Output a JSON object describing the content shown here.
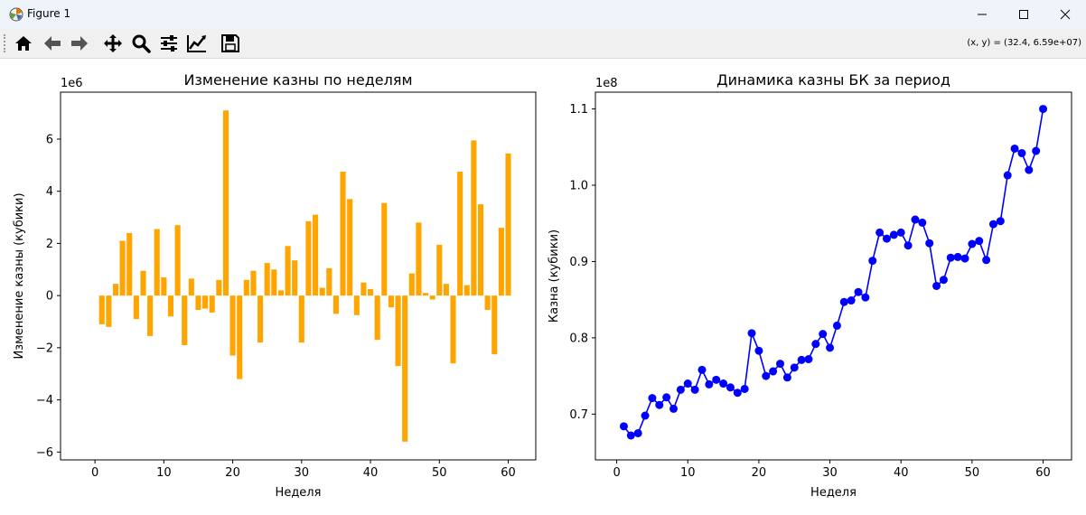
{
  "window": {
    "title": "Figure 1"
  },
  "toolbar": {
    "buttons": [
      {
        "name": "home-button",
        "icon": "home-icon"
      },
      {
        "name": "back-button",
        "icon": "arrow-left-icon"
      },
      {
        "name": "forward-button",
        "icon": "arrow-right-icon"
      },
      {
        "name": "pan-button",
        "icon": "move-icon"
      },
      {
        "name": "zoom-button",
        "icon": "magnifier-icon"
      },
      {
        "name": "configure-subplots-button",
        "icon": "sliders-icon"
      },
      {
        "name": "edit-axis-button",
        "icon": "line-chart-icon"
      },
      {
        "name": "save-button",
        "icon": "floppy-disk-icon"
      }
    ],
    "coords": "(x, y) = (32.4, 6.59e+07)"
  },
  "chart_data": [
    {
      "type": "bar",
      "title": "Изменение казны по неделям",
      "xlabel": "Неделя",
      "ylabel": "Изменение казны (кубики)",
      "offset_label": "1e6",
      "color": "#ffa500",
      "xlim": [
        -5,
        64
      ],
      "ylim": [
        -6.3,
        7.8
      ],
      "xticks": [
        0,
        10,
        20,
        30,
        40,
        50,
        60
      ],
      "xtick_labels": [
        "0",
        "10",
        "20",
        "30",
        "40",
        "50",
        "60"
      ],
      "yticks": [
        -6,
        -4,
        -2,
        0,
        2,
        4,
        6
      ],
      "ytick_labels": [
        "−6",
        "−4",
        "−2",
        "0",
        "2",
        "4",
        "6"
      ],
      "x": [
        1,
        2,
        3,
        4,
        5,
        6,
        7,
        8,
        9,
        10,
        11,
        12,
        13,
        14,
        15,
        16,
        17,
        18,
        19,
        20,
        21,
        22,
        23,
        24,
        25,
        26,
        27,
        28,
        29,
        30,
        31,
        32,
        33,
        34,
        35,
        36,
        37,
        38,
        39,
        40,
        41,
        42,
        43,
        44,
        45,
        46,
        47,
        48,
        49,
        50,
        51,
        52,
        53,
        54,
        55,
        56,
        57,
        58,
        59,
        60
      ],
      "values": [
        -1.1,
        -1.2,
        0.45,
        2.1,
        2.4,
        -0.9,
        0.95,
        -1.55,
        2.55,
        0.7,
        -0.8,
        2.7,
        -1.9,
        0.65,
        -0.55,
        -0.5,
        -0.65,
        0.6,
        7.1,
        -2.3,
        -3.2,
        0.6,
        0.95,
        -1.8,
        1.25,
        1.0,
        0.2,
        1.9,
        1.35,
        -1.8,
        2.85,
        3.1,
        0.3,
        1.05,
        -0.7,
        4.75,
        3.7,
        -0.75,
        0.5,
        0.25,
        -1.7,
        3.55,
        -0.45,
        -2.7,
        -5.6,
        0.85,
        2.8,
        0.1,
        -0.15,
        1.95,
        0.45,
        -2.6,
        4.75,
        0.4,
        5.95,
        3.5,
        -0.55,
        -2.25,
        2.6,
        5.45
      ]
    },
    {
      "type": "line",
      "title": "Динамика казны БК за период",
      "xlabel": "Неделя",
      "ylabel": "Казна (кубики)",
      "offset_label": "1e8",
      "color": "#0000ff",
      "marker": "circle",
      "xlim": [
        -3,
        64
      ],
      "ylim": [
        0.64,
        1.122
      ],
      "xticks": [
        0,
        10,
        20,
        30,
        40,
        50,
        60
      ],
      "xtick_labels": [
        "0",
        "10",
        "20",
        "30",
        "40",
        "50",
        "60"
      ],
      "yticks": [
        0.7,
        0.8,
        0.9,
        1.0,
        1.1
      ],
      "ytick_labels": [
        "0.7",
        "0.8",
        "0.9",
        "1.0",
        "1.1"
      ],
      "x": [
        1,
        2,
        3,
        4,
        5,
        6,
        7,
        8,
        9,
        10,
        11,
        12,
        13,
        14,
        15,
        16,
        17,
        18,
        19,
        20,
        21,
        22,
        23,
        24,
        25,
        26,
        27,
        28,
        29,
        30,
        31,
        32,
        33,
        34,
        35,
        36,
        37,
        38,
        39,
        40,
        41,
        42,
        43,
        44,
        45,
        46,
        47,
        48,
        49,
        50,
        51,
        52,
        53,
        54,
        55,
        56,
        57,
        58,
        59,
        60
      ],
      "values": [
        0.684,
        0.672,
        0.675,
        0.698,
        0.721,
        0.712,
        0.722,
        0.707,
        0.732,
        0.74,
        0.732,
        0.758,
        0.739,
        0.745,
        0.74,
        0.735,
        0.728,
        0.733,
        0.806,
        0.783,
        0.75,
        0.756,
        0.766,
        0.748,
        0.761,
        0.771,
        0.772,
        0.792,
        0.805,
        0.787,
        0.816,
        0.847,
        0.849,
        0.86,
        0.853,
        0.901,
        0.938,
        0.93,
        0.935,
        0.938,
        0.921,
        0.955,
        0.951,
        0.924,
        0.868,
        0.876,
        0.905,
        0.906,
        0.904,
        0.923,
        0.927,
        0.902,
        0.949,
        0.953,
        1.013,
        1.048,
        1.042,
        1.02,
        1.045,
        1.1
      ]
    }
  ]
}
